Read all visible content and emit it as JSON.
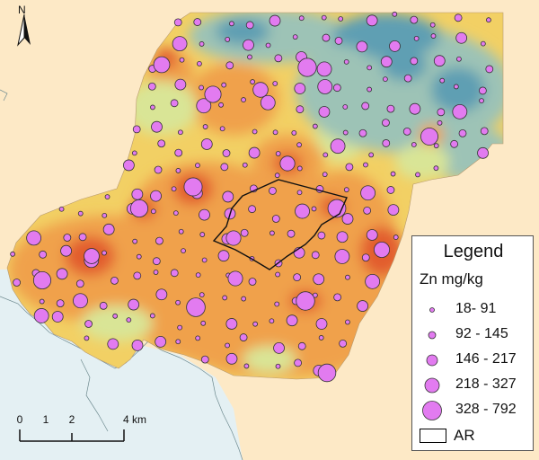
{
  "map": {
    "north_label": "N",
    "background_color": "#fde9c6",
    "sea_color": "#e4f0f3",
    "zone_colors": [
      "#5f9fb3",
      "#9dc3b6",
      "#d9e596",
      "#f2d064",
      "#f0a14c",
      "#e25d2d"
    ],
    "point_color": "#e27bf0"
  },
  "legend": {
    "title": "Legend",
    "subtitle": "Zn mg/kg",
    "classes": [
      {
        "label": "18- 91"
      },
      {
        "label": "92 - 145"
      },
      {
        "label": "146 - 217"
      },
      {
        "label": "218 - 327"
      },
      {
        "label": "328 - 792"
      }
    ],
    "ar_label": "AR"
  },
  "scale_bar": {
    "ticks": [
      "0",
      "1",
      "2",
      "4 km"
    ]
  }
}
